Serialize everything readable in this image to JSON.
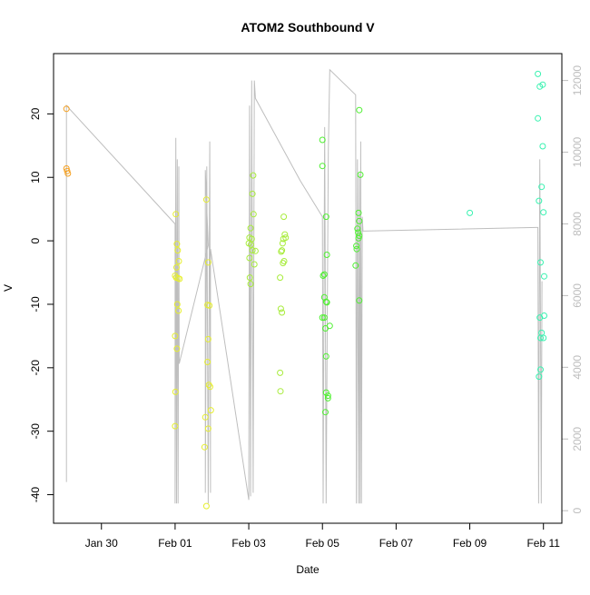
{
  "chart_data": {
    "type": "scatter",
    "title": "ATOM2 Southbound V",
    "xlabel": "Date",
    "ylabel": "V",
    "x_ticks": [
      "Jan 30",
      "Feb 01",
      "Feb 03",
      "Feb 05",
      "Feb 07",
      "Feb 09",
      "Feb 11"
    ],
    "x_tick_days": [
      30,
      32,
      34,
      36,
      38,
      40,
      42
    ],
    "xlim_days": [
      28.7,
      42.5
    ],
    "y_ticks": [
      -40,
      -30,
      -20,
      -10,
      0,
      10,
      20
    ],
    "ylim": [
      -44.5,
      29.5
    ],
    "y2_ticks": [
      0,
      2000,
      4000,
      6000,
      8000,
      10000,
      12000
    ],
    "y2lim": [
      -350,
      12750
    ],
    "grid": false,
    "legend": "none",
    "colors": {
      "background": "#ffffff",
      "frame": "#000000",
      "secondary_line": "#bebebe",
      "secondary_axis": "#bdbdbd"
    },
    "series": [
      {
        "color": "#f5a020",
        "points": [
          [
            29.05,
            20.8
          ],
          [
            29.05,
            11.4
          ],
          [
            29.07,
            11.0
          ],
          [
            29.09,
            10.6
          ]
        ]
      },
      {
        "color": "#e6ee30",
        "points": [
          [
            32.02,
            4.2
          ],
          [
            32.05,
            -0.5
          ],
          [
            32.07,
            -1.5
          ],
          [
            32.1,
            -3.2
          ],
          [
            32.04,
            -4.2
          ],
          [
            32.0,
            -5.5
          ],
          [
            32.03,
            -5.8
          ],
          [
            32.08,
            -5.9
          ],
          [
            32.12,
            -6.0
          ],
          [
            32.06,
            -10.0
          ],
          [
            32.09,
            -11.0
          ],
          [
            32.0,
            -15.0
          ],
          [
            32.05,
            -17.0
          ],
          [
            32.01,
            -23.8
          ],
          [
            32.0,
            -29.2
          ],
          [
            32.85,
            6.5
          ],
          [
            32.9,
            -3.4
          ],
          [
            32.88,
            -10.1
          ],
          [
            32.93,
            -10.2
          ],
          [
            32.9,
            -15.5
          ],
          [
            32.88,
            -19.1
          ],
          [
            32.92,
            -22.7
          ],
          [
            32.95,
            -23.0
          ],
          [
            32.97,
            -26.7
          ],
          [
            32.82,
            -27.8
          ],
          [
            32.9,
            -29.6
          ],
          [
            32.8,
            -32.5
          ],
          [
            32.85,
            -41.8
          ]
        ]
      },
      {
        "color": "#a8ec3c",
        "points": [
          [
            34.12,
            10.3
          ],
          [
            34.1,
            7.4
          ],
          [
            34.13,
            4.2
          ],
          [
            34.05,
            2.0
          ],
          [
            34.02,
            0.5
          ],
          [
            34.08,
            0.3
          ],
          [
            34.0,
            -0.4
          ],
          [
            34.06,
            -0.6
          ],
          [
            34.1,
            -1.5
          ],
          [
            34.18,
            -1.6
          ],
          [
            34.02,
            -2.7
          ],
          [
            34.15,
            -3.7
          ],
          [
            34.03,
            -5.8
          ],
          [
            34.05,
            -6.8
          ],
          [
            34.95,
            3.8
          ],
          [
            34.98,
            1.0
          ],
          [
            34.94,
            0.3
          ],
          [
            35.0,
            0.5
          ],
          [
            34.92,
            -0.4
          ],
          [
            34.9,
            -1.5
          ],
          [
            34.88,
            -1.7
          ],
          [
            34.96,
            -3.2
          ],
          [
            34.93,
            -3.5
          ],
          [
            34.85,
            -5.8
          ],
          [
            34.87,
            -10.7
          ],
          [
            34.9,
            -11.3
          ],
          [
            34.85,
            -20.8
          ],
          [
            34.86,
            -23.7
          ]
        ]
      },
      {
        "color": "#4ef030",
        "points": [
          [
            36.0,
            15.9
          ],
          [
            36.0,
            11.8
          ],
          [
            36.1,
            3.8
          ],
          [
            36.12,
            -2.2
          ],
          [
            36.05,
            -5.3
          ],
          [
            36.02,
            -5.5
          ],
          [
            36.05,
            -8.9
          ],
          [
            36.1,
            -9.6
          ],
          [
            36.12,
            -9.7
          ],
          [
            36.0,
            -12.1
          ],
          [
            36.05,
            -12.1
          ],
          [
            36.08,
            -13.8
          ],
          [
            36.2,
            -13.4
          ],
          [
            36.1,
            -18.2
          ],
          [
            36.1,
            -23.9
          ],
          [
            36.15,
            -24.4
          ],
          [
            36.15,
            -24.8
          ],
          [
            36.08,
            -27.0
          ],
          [
            37.0,
            20.6
          ],
          [
            37.03,
            10.4
          ],
          [
            36.98,
            4.4
          ],
          [
            37.0,
            3.1
          ],
          [
            36.95,
            1.9
          ],
          [
            36.97,
            1.3
          ],
          [
            37.0,
            0.8
          ],
          [
            36.98,
            0.4
          ],
          [
            36.92,
            -0.8
          ],
          [
            36.93,
            -1.3
          ],
          [
            36.9,
            -3.9
          ],
          [
            37.0,
            -9.4
          ]
        ]
      },
      {
        "color": "#38f2b0",
        "points": [
          [
            40.0,
            4.4
          ],
          [
            41.85,
            26.3
          ],
          [
            41.9,
            24.3
          ],
          [
            41.98,
            24.6
          ],
          [
            41.85,
            19.3
          ],
          [
            41.98,
            14.9
          ],
          [
            41.95,
            8.5
          ],
          [
            41.88,
            6.3
          ],
          [
            42.0,
            4.5
          ],
          [
            41.92,
            -3.4
          ],
          [
            42.02,
            -5.6
          ],
          [
            41.9,
            -12.1
          ],
          [
            42.02,
            -11.8
          ],
          [
            41.95,
            -14.5
          ],
          [
            41.92,
            -15.3
          ],
          [
            42.0,
            -15.3
          ],
          [
            41.92,
            -20.3
          ],
          [
            41.88,
            -21.4
          ]
        ]
      }
    ],
    "secondary_line": [
      [
        29.05,
        800
      ],
      [
        29.05,
        11300
      ],
      [
        32.0,
        8000
      ],
      [
        32.0,
        200
      ],
      [
        32.02,
        10400
      ],
      [
        32.04,
        200
      ],
      [
        32.06,
        9800
      ],
      [
        32.08,
        200
      ],
      [
        32.1,
        9600
      ],
      [
        32.11,
        4100
      ],
      [
        32.9,
        7400
      ],
      [
        32.82,
        9500
      ],
      [
        32.82,
        500
      ],
      [
        32.86,
        9600
      ],
      [
        32.9,
        200
      ],
      [
        32.94,
        10300
      ],
      [
        32.96,
        500
      ],
      [
        32.96,
        7300
      ],
      [
        34.0,
        300
      ],
      [
        34.02,
        11300
      ],
      [
        34.05,
        400
      ],
      [
        34.08,
        12000
      ],
      [
        34.12,
        500
      ],
      [
        34.15,
        12000
      ],
      [
        34.18,
        11500
      ],
      [
        35.4,
        9200
      ],
      [
        36.0,
        8200
      ],
      [
        36.02,
        200
      ],
      [
        36.06,
        10700
      ],
      [
        36.1,
        200
      ],
      [
        36.16,
        10000
      ],
      [
        36.2,
        12300
      ],
      [
        36.9,
        11600
      ],
      [
        36.92,
        200
      ],
      [
        36.95,
        9800
      ],
      [
        36.98,
        200
      ],
      [
        37.0,
        9400
      ],
      [
        37.02,
        200
      ],
      [
        37.04,
        10300
      ],
      [
        37.06,
        200
      ],
      [
        37.08,
        8200
      ],
      [
        37.1,
        7800
      ],
      [
        41.8,
        7900
      ],
      [
        41.85,
        7900
      ],
      [
        41.87,
        200
      ],
      [
        41.9,
        9800
      ],
      [
        41.94,
        200
      ],
      [
        41.96,
        6400
      ]
    ]
  }
}
